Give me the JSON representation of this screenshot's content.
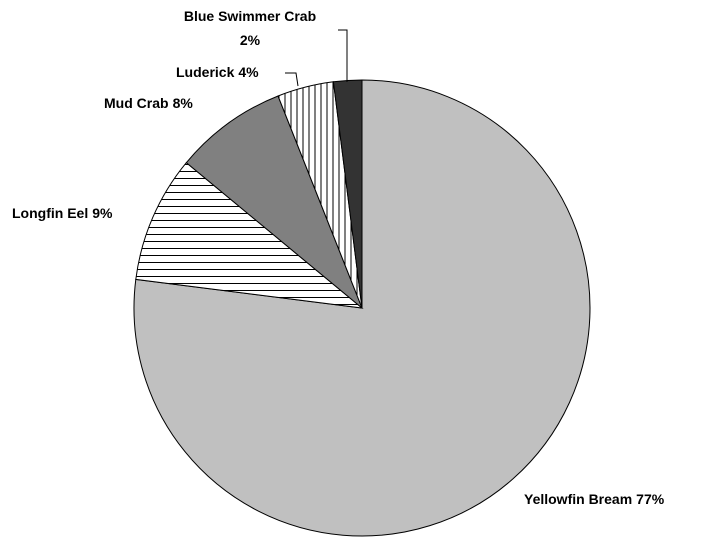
{
  "chart_data": {
    "type": "pie",
    "categories": [
      "Yellowfin Bream",
      "Longfin Eel",
      "Mud Crab",
      "Luderick",
      "Blue Swimmer Crab"
    ],
    "values": [
      77,
      9,
      8,
      4,
      2
    ],
    "value_labels": [
      "77%",
      "9%",
      "8%",
      "4%",
      "2%"
    ],
    "colors": [
      "#c0c0c0",
      "#ffffff",
      "#808080",
      "#ffffff",
      "#333333"
    ],
    "patterns": [
      "solid",
      "horizontal",
      "solid",
      "vertical",
      "solid"
    ]
  }
}
